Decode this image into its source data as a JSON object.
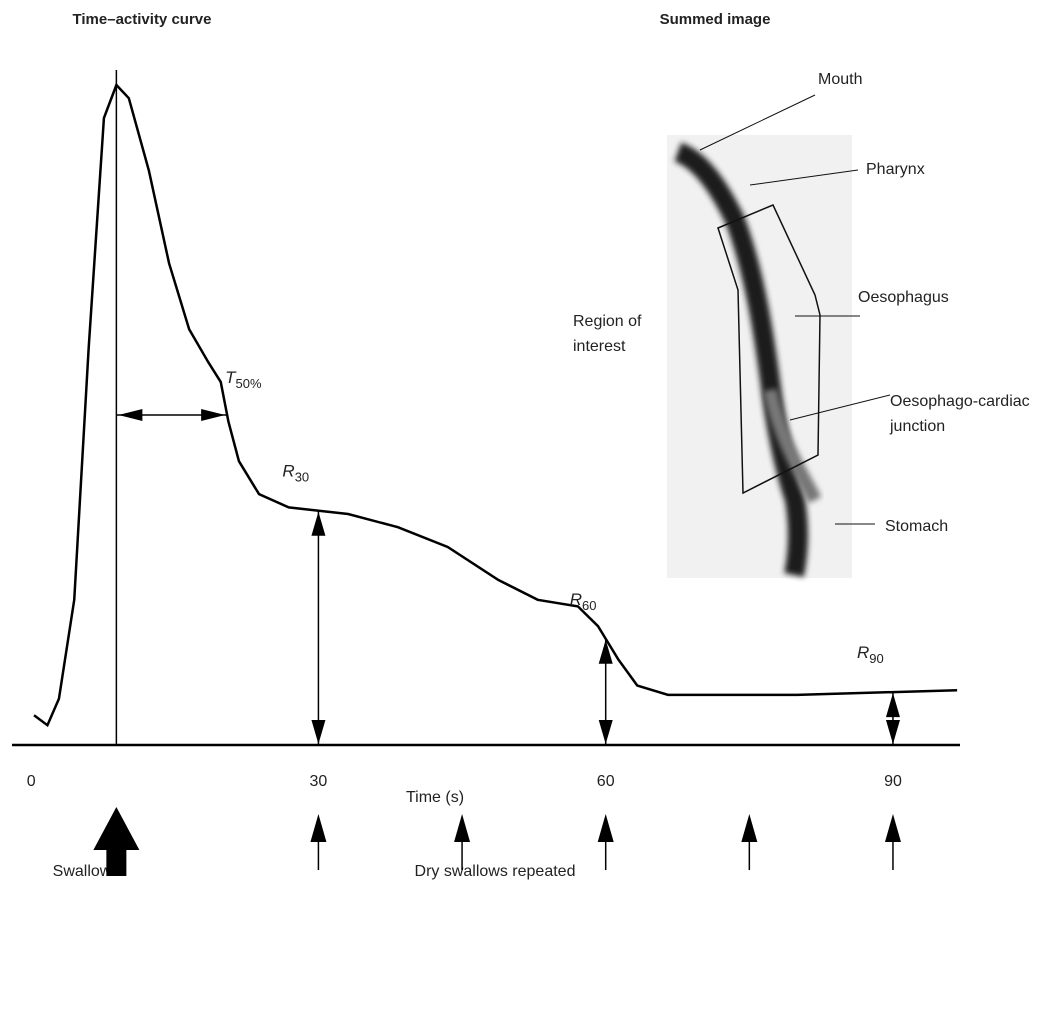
{
  "chart_data": {
    "type": "line",
    "title": "Time–activity curve",
    "image_title": "Summed image",
    "x_label": "Time (s)",
    "x": [
      0.3,
      1.7,
      2.9,
      4.5,
      6,
      7.6,
      8.9,
      10.2,
      12.3,
      14.4,
      16.5,
      18.5,
      19.8,
      20.6,
      21.7,
      23.8,
      26.9,
      33.1,
      38.3,
      43.5,
      48.8,
      52.9,
      57.1,
      59.2,
      61.3,
      63.3,
      66.5,
      80,
      96.7
    ],
    "values": [
      4.5,
      3,
      7,
      22,
      60,
      95,
      100,
      98,
      87,
      73,
      63,
      58,
      55,
      49,
      43,
      38,
      36,
      35,
      33,
      30,
      25,
      22,
      21,
      18,
      13,
      9,
      7.6,
      7.6,
      8.3
    ],
    "color": "#000000",
    "xlim": [
      -2,
      97
    ],
    "ylim": [
      0,
      100
    ],
    "xticks": [
      0,
      30,
      60,
      90
    ],
    "half_time": {
      "main": "T",
      "sub": "50%"
    },
    "residuals": [
      {
        "main": "R",
        "sub": "30"
      },
      {
        "main": "R",
        "sub": "60"
      },
      {
        "main": "R",
        "sub": "90"
      }
    ],
    "swallows": [
      8.9,
      30,
      45,
      60,
      75,
      90
    ],
    "swallow_label": "Swallow",
    "dry_swallow_label": "Dry swallows repeated",
    "image_labels": [
      {
        "lines": [
          "Mouth"
        ]
      },
      {
        "lines": [
          "Pharynx"
        ]
      },
      {
        "lines": [
          "Oesophagus"
        ]
      },
      {
        "lines": [
          "Region of",
          "interest"
        ]
      },
      {
        "lines": [
          "Oesophago-cardiac",
          "junction"
        ]
      },
      {
        "lines": [
          "Stomach"
        ]
      }
    ]
  }
}
